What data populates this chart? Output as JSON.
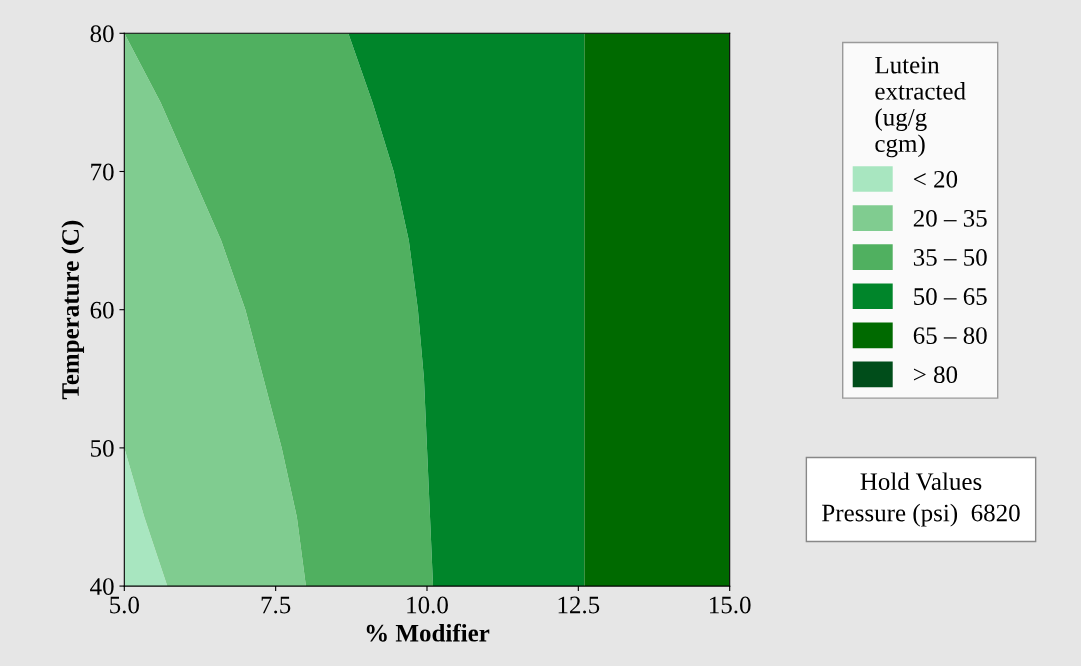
{
  "chart_data": {
    "type": "area",
    "orientation": "horizontal",
    "xlabel": "% Modifier",
    "ylabel": "Temperature (C)",
    "legend_title": "Lutein extracted (ug/g cgm)",
    "legend": "right",
    "grid": false,
    "x": [
      40,
      45,
      50,
      55,
      60,
      65,
      70,
      75,
      80
    ],
    "series": [
      {
        "name": "< 20",
        "color": "#a8e6c0",
        "values": [
          5.71,
          5.33,
          5.0,
          5.0,
          5.0,
          5.0,
          5.0,
          5.0,
          5.0
        ]
      },
      {
        "name": "20 – 35",
        "color": "#80cc90",
        "values": [
          8.0,
          7.85,
          7.6,
          7.3,
          7.0,
          6.6,
          6.1,
          5.6,
          5.0
        ]
      },
      {
        "name": "35 – 50",
        "color": "#50b060",
        "values": [
          10.1,
          10.05,
          10.0,
          9.95,
          9.85,
          9.7,
          9.45,
          9.1,
          8.7
        ]
      },
      {
        "name": "50 – 65",
        "color": "#00852a",
        "values": [
          12.6,
          12.6,
          12.6,
          12.6,
          12.6,
          12.6,
          12.6,
          12.6,
          12.6
        ]
      },
      {
        "name": "65 – 80",
        "color": "#006a00",
        "values": [
          15,
          15,
          15,
          15,
          15,
          15,
          15,
          15,
          15
        ]
      },
      {
        "name": "> 80",
        "color": "#004d1a",
        "values": [
          null,
          null,
          null,
          null,
          null,
          null,
          null,
          null,
          null
        ]
      }
    ],
    "xlim": [
      5,
      15
    ],
    "xticks": [
      {
        "value": 5,
        "label": "5.0"
      },
      {
        "value": 7.5,
        "label": "7.5"
      },
      {
        "value": 10,
        "label": "10.0"
      },
      {
        "value": 12.5,
        "label": "12.5"
      },
      {
        "value": 15,
        "label": "15.0"
      }
    ],
    "ylim": [
      40,
      80
    ],
    "yticks": [
      40,
      50,
      60,
      70,
      80
    ],
    "annotations": [
      "Hold Values",
      "Pressure (psi)  6820"
    ]
  }
}
